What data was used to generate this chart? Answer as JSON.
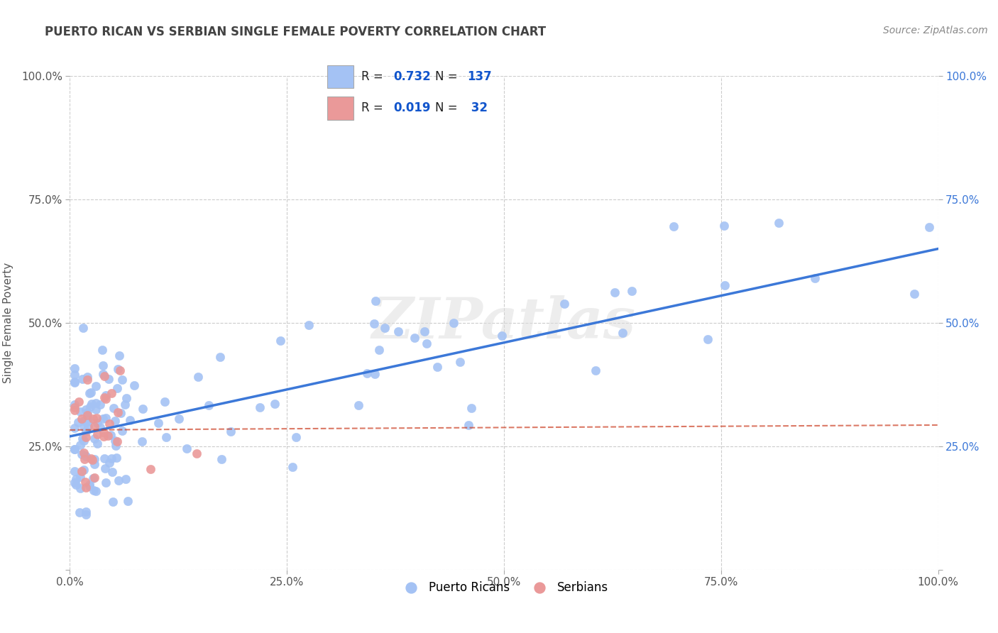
{
  "title": "PUERTO RICAN VS SERBIAN SINGLE FEMALE POVERTY CORRELATION CHART",
  "source": "Source: ZipAtlas.com",
  "ylabel": "Single Female Poverty",
  "xlim": [
    0,
    1
  ],
  "ylim": [
    0,
    1
  ],
  "x_ticks": [
    0,
    0.25,
    0.5,
    0.75,
    1.0
  ],
  "y_ticks": [
    0,
    0.25,
    0.5,
    0.75,
    1.0
  ],
  "x_tick_labels": [
    "0.0%",
    "25.0%",
    "50.0%",
    "75.0%",
    "100.0%"
  ],
  "y_tick_labels_left": [
    "",
    "25.0%",
    "50.0%",
    "75.0%",
    "100.0%"
  ],
  "y_tick_labels_right": [
    "",
    "25.0%",
    "50.0%",
    "75.0%",
    "100.0%"
  ],
  "pr_R": 0.732,
  "pr_N": 137,
  "sr_R": 0.019,
  "sr_N": 32,
  "pr_color": "#a4c2f4",
  "sr_color": "#ea9999",
  "pr_line_color": "#3c78d8",
  "sr_line_color": "#cc4125",
  "background_color": "#ffffff",
  "grid_color": "#b7b7b7",
  "watermark": "ZIPatlas",
  "title_color": "#434343",
  "legend_text_color": "#1155cc",
  "pr_label": "Puerto Ricans",
  "sr_label": "Serbians"
}
